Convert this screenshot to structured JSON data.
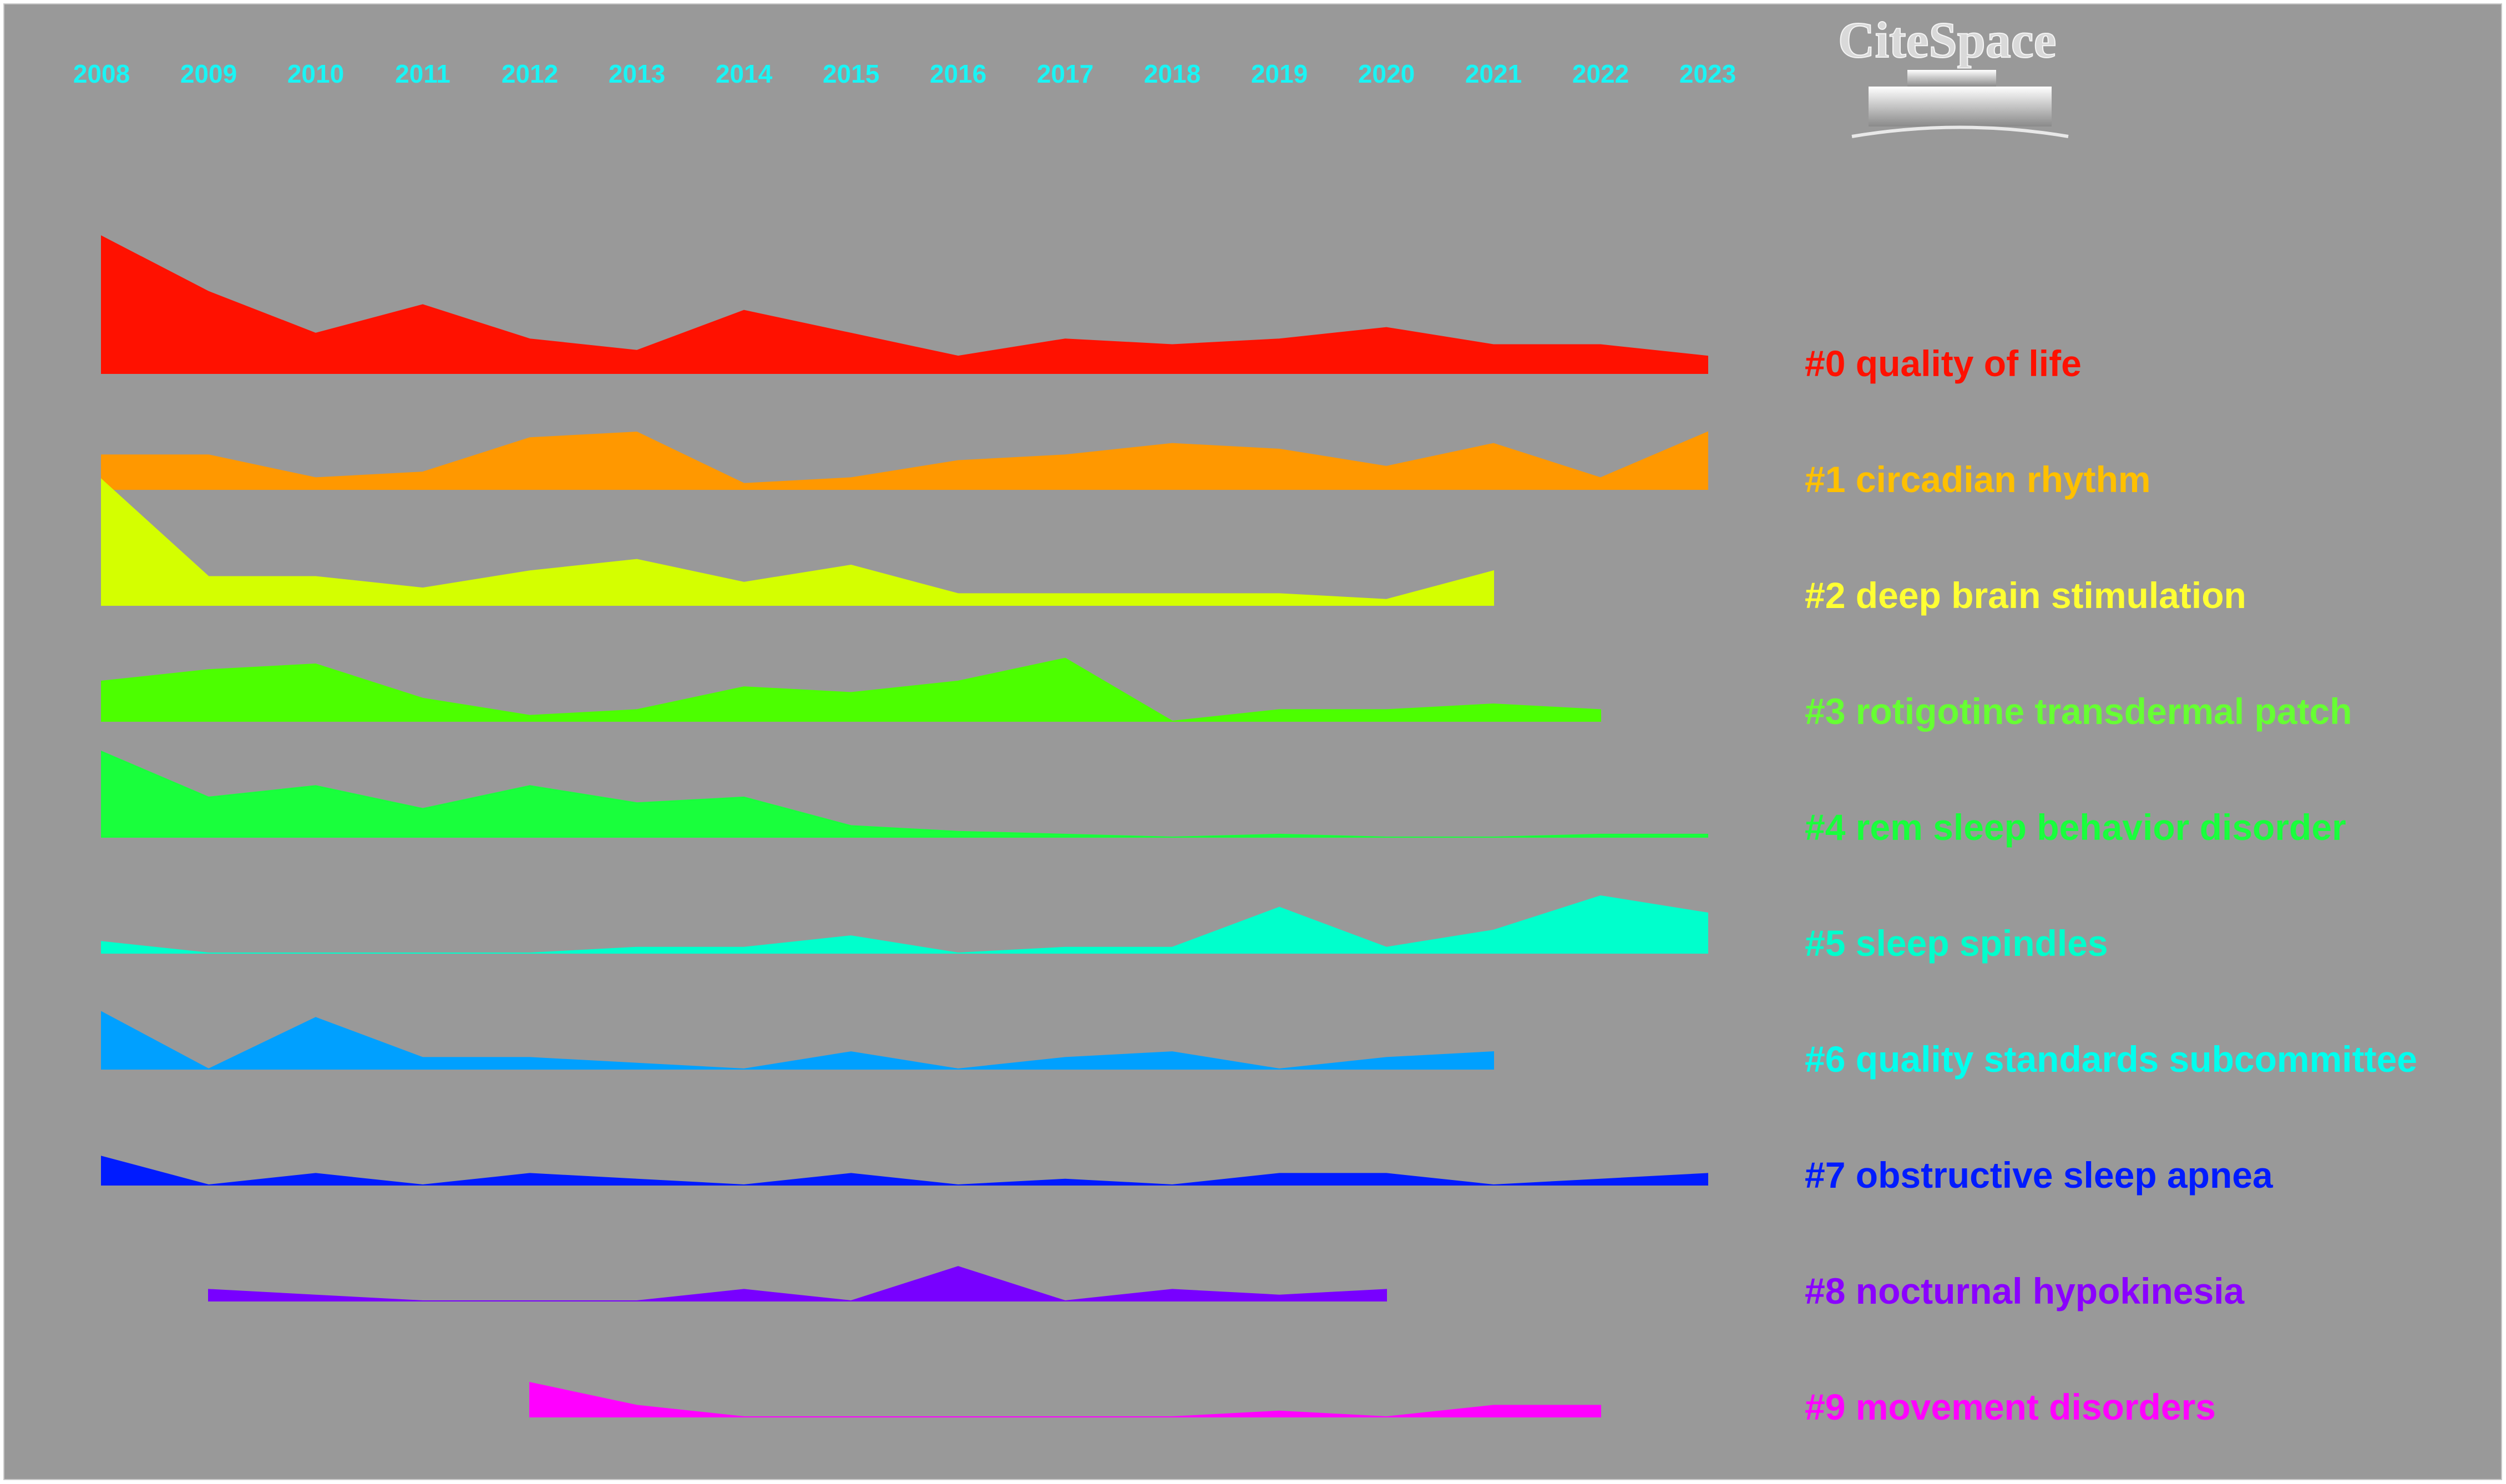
{
  "logo": {
    "text": "CiteSpace"
  },
  "chart_data": {
    "type": "area",
    "title": "",
    "xlabel": "",
    "ylabel": "",
    "x": [
      "2008",
      "2009",
      "2010",
      "2011",
      "2012",
      "2013",
      "2014",
      "2015",
      "2016",
      "2017",
      "2018",
      "2019",
      "2020",
      "2021",
      "2022",
      "2023"
    ],
    "background": "#999999",
    "grid": false,
    "series": [
      {
        "name": "#0 quality of life",
        "color": "#ff1100",
        "values": [
          24,
          14.3,
          7,
          12,
          6,
          4,
          11,
          7,
          3,
          6,
          5,
          6,
          8,
          5,
          5,
          3
        ]
      },
      {
        "name": "#1 circadian rhythm",
        "color": "#ff9800",
        "values": [
          6,
          6,
          2,
          3,
          9,
          10,
          1,
          2,
          5,
          6,
          8,
          7,
          4,
          8,
          2,
          10
        ]
      },
      {
        "name": "#2 deep brain stimulation",
        "color": "#d4ff00",
        "values": [
          22,
          5,
          5,
          3,
          6,
          8,
          4,
          7,
          2,
          2,
          2,
          2,
          1,
          6,
          null,
          null
        ]
      },
      {
        "name": "#3 rotigotine transdermal patch",
        "color": "#4cff00",
        "values": [
          7,
          9,
          10,
          4,
          1,
          2,
          6,
          5,
          7,
          11,
          0,
          2,
          2,
          3,
          2,
          null
        ]
      },
      {
        "name": "#4 rem sleep behavior disorder",
        "color": "#19ff3c",
        "values": [
          15,
          7,
          9,
          5,
          9,
          6,
          7,
          2,
          1,
          0.5,
          0,
          0.5,
          0,
          0,
          0.5,
          0.5
        ]
      },
      {
        "name": "#5 sleep spindles",
        "color": "#00ffcc",
        "values": [
          2,
          0,
          0,
          0,
          0,
          1,
          1,
          3,
          0,
          1,
          1,
          8,
          1,
          4,
          10,
          7
        ]
      },
      {
        "name": "#6 quality standards subcommittee",
        "color": "#00a0ff",
        "values": [
          10,
          0,
          9,
          2,
          2,
          1,
          0,
          3,
          0,
          2,
          3,
          0,
          2,
          3,
          null,
          null
        ]
      },
      {
        "name": "#7 obstructive sleep apnea",
        "color": "#001bff",
        "values": [
          5,
          0,
          2,
          0,
          2,
          1,
          0,
          2,
          0,
          1,
          0,
          2,
          2,
          0,
          1,
          2
        ]
      },
      {
        "name": "#8 nocturnal hypokinesia",
        "color": "#7800ff",
        "values": [
          null,
          2,
          1,
          0,
          0,
          0,
          2,
          0,
          6,
          0,
          2,
          1,
          2,
          null,
          null,
          null
        ]
      },
      {
        "name": "#9 movement disorders",
        "color": "#ff00ff",
        "values": [
          null,
          null,
          null,
          null,
          6,
          2,
          0,
          0,
          0,
          0,
          0,
          1,
          0,
          2,
          2,
          null
        ]
      }
    ],
    "label_colors": [
      "#ff1100",
      "#ffc000",
      "#ffff33",
      "#66ff33",
      "#19ff3c",
      "#00ffcc",
      "#00ffee",
      "#001bff",
      "#8a00ff",
      "#ff00ff"
    ]
  }
}
